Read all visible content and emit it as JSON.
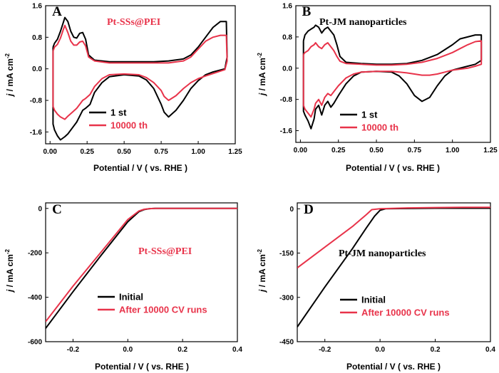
{
  "colors": {
    "black": "#000000",
    "red": "#e8334a"
  },
  "chart_data": [
    {
      "type": "line",
      "panel_label": "A",
      "annotation": "Pt-SSs@PEI",
      "xlabel": "Potential / V ( vs. RHE )",
      "ylabel": "j / mA cm-2",
      "ylabel_base": "j",
      "ylabel_unit": " / mA cm",
      "ylabel_sup": "-2",
      "xlim": [
        -0.03,
        1.25
      ],
      "ylim": [
        -1.9,
        1.6
      ],
      "xticks": [
        "0.00",
        "0.25",
        "0.50",
        "0.75",
        "1.00",
        "1.25"
      ],
      "xtick_values": [
        0,
        0.25,
        0.5,
        0.75,
        1.0,
        1.25
      ],
      "yticks": [
        "-1.6",
        "-0.8",
        "0.0",
        "0.8",
        "1.6"
      ],
      "ytick_values": [
        -1.6,
        -0.8,
        0,
        0.8,
        1.6
      ],
      "series": [
        {
          "name": "1 st",
          "color": "#000000",
          "x": [
            0.02,
            0.03,
            0.05,
            0.07,
            0.09,
            0.1,
            0.12,
            0.14,
            0.16,
            0.18,
            0.2,
            0.22,
            0.24,
            0.26,
            0.3,
            0.4,
            0.5,
            0.6,
            0.7,
            0.8,
            0.9,
            0.95,
            1.0,
            1.05,
            1.1,
            1.15,
            1.19,
            1.195,
            1.18,
            1.1,
            1.05,
            1.0,
            0.95,
            0.9,
            0.85,
            0.8,
            0.77,
            0.75,
            0.7,
            0.65,
            0.6,
            0.5,
            0.4,
            0.35,
            0.3,
            0.27,
            0.24,
            0.22,
            0.2,
            0.18,
            0.15,
            0.12,
            0.1,
            0.07,
            0.05,
            0.03,
            0.02,
            0.02
          ],
          "y": [
            0.55,
            0.65,
            0.75,
            0.95,
            1.18,
            1.3,
            1.2,
            0.95,
            0.8,
            0.78,
            0.9,
            0.92,
            0.75,
            0.35,
            0.22,
            0.18,
            0.18,
            0.18,
            0.18,
            0.2,
            0.25,
            0.35,
            0.55,
            0.8,
            1.05,
            1.2,
            1.2,
            0.3,
            0.0,
            -0.08,
            -0.15,
            -0.3,
            -0.5,
            -0.8,
            -1.05,
            -1.22,
            -1.1,
            -0.9,
            -0.5,
            -0.28,
            -0.18,
            -0.15,
            -0.2,
            -0.35,
            -0.6,
            -0.9,
            -1.0,
            -1.05,
            -1.2,
            -1.35,
            -1.5,
            -1.65,
            -1.72,
            -1.8,
            -1.7,
            -1.55,
            -1.4,
            0.55
          ]
        },
        {
          "name": "10000 th",
          "color": "#e8334a",
          "x": [
            0.02,
            0.03,
            0.05,
            0.07,
            0.09,
            0.1,
            0.12,
            0.14,
            0.16,
            0.18,
            0.2,
            0.22,
            0.24,
            0.26,
            0.3,
            0.4,
            0.5,
            0.6,
            0.7,
            0.8,
            0.9,
            0.95,
            1.0,
            1.05,
            1.1,
            1.15,
            1.19,
            1.195,
            1.18,
            1.1,
            1.05,
            1.0,
            0.95,
            0.9,
            0.85,
            0.8,
            0.77,
            0.75,
            0.7,
            0.65,
            0.6,
            0.5,
            0.4,
            0.35,
            0.3,
            0.27,
            0.24,
            0.22,
            0.2,
            0.18,
            0.15,
            0.12,
            0.1,
            0.07,
            0.05,
            0.03,
            0.02,
            0.02
          ],
          "y": [
            0.45,
            0.55,
            0.62,
            0.78,
            1.0,
            1.1,
            0.92,
            0.7,
            0.6,
            0.6,
            0.68,
            0.7,
            0.58,
            0.3,
            0.2,
            0.15,
            0.15,
            0.15,
            0.15,
            0.15,
            0.2,
            0.3,
            0.5,
            0.7,
            0.8,
            0.85,
            0.85,
            0.2,
            -0.02,
            -0.12,
            -0.18,
            -0.25,
            -0.35,
            -0.5,
            -0.68,
            -0.8,
            -0.7,
            -0.55,
            -0.35,
            -0.22,
            -0.15,
            -0.13,
            -0.15,
            -0.25,
            -0.45,
            -0.65,
            -0.75,
            -0.8,
            -0.9,
            -1.0,
            -1.1,
            -1.2,
            -1.28,
            -1.22,
            -1.15,
            -1.05,
            -0.95,
            0.45
          ]
        }
      ]
    },
    {
      "type": "line",
      "panel_label": "B",
      "annotation": "Pt-JM nanoparticles",
      "xlabel": "Potential / V ( vs. RHE )",
      "ylabel": "j / mA cm-2",
      "ylabel_base": "j",
      "ylabel_unit": " / mA cm",
      "ylabel_sup": "-2",
      "xlim": [
        -0.03,
        1.25
      ],
      "ylim": [
        -1.9,
        1.6
      ],
      "xticks": [
        "0.00",
        "0.25",
        "0.50",
        "0.75",
        "1.00",
        "1.25"
      ],
      "xtick_values": [
        0,
        0.25,
        0.5,
        0.75,
        1.0,
        1.25
      ],
      "yticks": [
        "-1.6",
        "-0.8",
        "0.0",
        "0.8",
        "1.6"
      ],
      "ytick_values": [
        -1.6,
        -0.8,
        0,
        0.8,
        1.6
      ],
      "series": [
        {
          "name": "1 st",
          "color": "#000000",
          "x": [
            0.02,
            0.03,
            0.05,
            0.07,
            0.09,
            0.1,
            0.12,
            0.14,
            0.16,
            0.18,
            0.2,
            0.22,
            0.24,
            0.26,
            0.3,
            0.4,
            0.5,
            0.6,
            0.7,
            0.8,
            0.9,
            1.0,
            1.05,
            1.1,
            1.15,
            1.19,
            1.19,
            1.15,
            1.1,
            1.0,
            0.95,
            0.9,
            0.85,
            0.8,
            0.75,
            0.7,
            0.65,
            0.6,
            0.5,
            0.4,
            0.35,
            0.3,
            0.25,
            0.22,
            0.2,
            0.18,
            0.16,
            0.14,
            0.12,
            0.1,
            0.09,
            0.07,
            0.05,
            0.03,
            0.02,
            0.02
          ],
          "y": [
            0.7,
            0.85,
            0.95,
            1.0,
            1.05,
            1.1,
            1.05,
            0.9,
            1.0,
            1.05,
            0.95,
            0.85,
            0.6,
            0.3,
            0.15,
            0.12,
            0.1,
            0.1,
            0.12,
            0.2,
            0.35,
            0.6,
            0.75,
            0.8,
            0.85,
            0.85,
            0.2,
            0.1,
            0.05,
            -0.05,
            -0.2,
            -0.45,
            -0.75,
            -0.85,
            -0.7,
            -0.4,
            -0.2,
            -0.1,
            -0.08,
            -0.1,
            -0.2,
            -0.4,
            -0.7,
            -0.9,
            -1.0,
            -0.85,
            -0.95,
            -1.2,
            -0.95,
            -1.05,
            -1.3,
            -1.55,
            -1.35,
            -1.2,
            -1.1,
            0.7
          ]
        },
        {
          "name": "10000 th",
          "color": "#e8334a",
          "x": [
            0.02,
            0.03,
            0.05,
            0.07,
            0.09,
            0.1,
            0.12,
            0.14,
            0.16,
            0.18,
            0.2,
            0.22,
            0.24,
            0.26,
            0.3,
            0.4,
            0.5,
            0.6,
            0.7,
            0.8,
            0.9,
            1.0,
            1.05,
            1.1,
            1.15,
            1.19,
            1.19,
            1.15,
            1.1,
            1.0,
            0.95,
            0.9,
            0.85,
            0.8,
            0.75,
            0.7,
            0.65,
            0.6,
            0.5,
            0.4,
            0.35,
            0.3,
            0.25,
            0.22,
            0.2,
            0.18,
            0.16,
            0.14,
            0.12,
            0.1,
            0.09,
            0.07,
            0.05,
            0.03,
            0.02,
            0.02
          ],
          "y": [
            0.35,
            0.4,
            0.45,
            0.55,
            0.6,
            0.65,
            0.55,
            0.5,
            0.6,
            0.65,
            0.55,
            0.45,
            0.3,
            0.18,
            0.12,
            0.1,
            0.08,
            0.08,
            0.1,
            0.15,
            0.25,
            0.4,
            0.5,
            0.6,
            0.68,
            0.7,
            0.1,
            0.05,
            0.0,
            -0.05,
            -0.1,
            -0.15,
            -0.18,
            -0.18,
            -0.15,
            -0.12,
            -0.1,
            -0.08,
            -0.08,
            -0.1,
            -0.15,
            -0.25,
            -0.45,
            -0.6,
            -0.7,
            -0.65,
            -0.75,
            -0.95,
            -0.8,
            -0.9,
            -1.05,
            -1.25,
            -1.15,
            -1.05,
            -0.95,
            0.35
          ]
        }
      ]
    },
    {
      "type": "line",
      "panel_label": "C",
      "annotation": "Pt-SSs@PEI",
      "xlabel": "Potential / V ( vs. RHE )",
      "ylabel": "j / mA cm-2",
      "ylabel_base": "j",
      "ylabel_unit": " / mA cm",
      "ylabel_sup": "-2",
      "xlim": [
        -0.3,
        0.4
      ],
      "ylim": [
        -600,
        25
      ],
      "xticks": [
        "-0.2",
        "0.0",
        "0.2",
        "0.4"
      ],
      "xtick_values": [
        -0.2,
        0,
        0.2,
        0.4
      ],
      "yticks": [
        "0",
        "-200",
        "-400",
        "-600"
      ],
      "ytick_values": [
        0,
        -200,
        -400,
        -600
      ],
      "series": [
        {
          "name": "Initial",
          "color": "#000000",
          "x": [
            -0.3,
            -0.2,
            -0.1,
            0.0,
            0.04,
            0.06,
            0.08,
            0.1,
            0.2,
            0.3,
            0.4
          ],
          "y": [
            -540,
            -375,
            -215,
            -60,
            -15,
            -5,
            -1,
            0,
            0,
            0,
            0
          ]
        },
        {
          "name": "After 10000 CV runs",
          "color": "#e8334a",
          "x": [
            -0.3,
            -0.2,
            -0.1,
            0.0,
            0.04,
            0.06,
            0.08,
            0.1,
            0.2,
            0.3,
            0.4
          ],
          "y": [
            -510,
            -350,
            -200,
            -50,
            -12,
            -4,
            -1,
            0,
            0,
            0,
            0
          ]
        }
      ]
    },
    {
      "type": "line",
      "panel_label": "D",
      "annotation": "Pt-JM nanoparticles",
      "xlabel": "Potential / V ( vs. RHE )",
      "ylabel": "j / mA cm-2",
      "ylabel_base": "j",
      "ylabel_unit": " / mA cm",
      "ylabel_sup": "-2",
      "xlim": [
        -0.3,
        0.4
      ],
      "ylim": [
        -450,
        20
      ],
      "xticks": [
        "-0.2",
        "0.0",
        "0.2",
        "0.4"
      ],
      "xtick_values": [
        -0.2,
        0,
        0.2,
        0.4
      ],
      "yticks": [
        "0",
        "-150",
        "-300",
        "-450"
      ],
      "ytick_values": [
        0,
        -150,
        -300,
        -450
      ],
      "series": [
        {
          "name": "Initial",
          "color": "#000000",
          "x": [
            -0.3,
            -0.2,
            -0.1,
            -0.05,
            -0.02,
            0.0,
            0.02,
            0.1,
            0.2,
            0.3,
            0.4
          ],
          "y": [
            -400,
            -265,
            -135,
            -65,
            -25,
            -5,
            0,
            1,
            2,
            2,
            2
          ]
        },
        {
          "name": "After 10000 CV runs",
          "color": "#e8334a",
          "x": [
            -0.3,
            -0.2,
            -0.1,
            -0.05,
            -0.03,
            0.0,
            0.1,
            0.2,
            0.3,
            0.4
          ],
          "y": [
            -200,
            -130,
            -60,
            -20,
            -3,
            0,
            3,
            4,
            5,
            5
          ]
        }
      ]
    }
  ]
}
